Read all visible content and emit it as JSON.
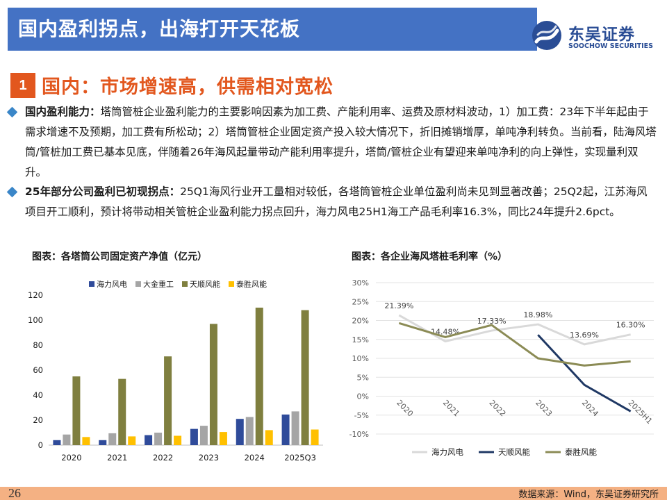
{
  "header": {
    "title": "国内盈利拐点，出海打开天花板"
  },
  "logo": {
    "cn": "东吴证券",
    "en": "SOOCHOW SECURITIES"
  },
  "section": {
    "number": "1",
    "title": "国内：市场增速高，供需相对宽松"
  },
  "bullets": [
    {
      "lead": "国内盈利能力：",
      "text": "塔筒管桩企业盈利能力的主要影响因素为加工费、产能利用率、运费及原材料波动，1）加工费：23年下半年起由于需求增速不及预期，加工费有所松动；2）塔筒管桩企业固定资产投入较大情况下，折旧摊销增厚，单吨净利转负。当前看，陆海风塔筒/管桩加工费已基本见底，伴随着26年海风起量带动产能利用率提升，塔筒/管桩企业有望迎来单吨净利的向上弹性，实现量利双升。"
    },
    {
      "lead": "25年部分公司盈利已初现拐点：",
      "text": "25Q1海风行业开工量相对较低，各塔筒管桩企业单位盈利尚未见到显著改善；25Q2起，江苏海风项目开工顺利，预计将带动相关管桩企业盈利能力拐点回升，海力风电25H1海工产品毛利率16.3%，同比24年提升2.6pct。"
    }
  ],
  "chart_titles": {
    "left": "图表：各塔筒公司固定资产净值（亿元）",
    "right": "图表：各企业海风塔桩毛利率（%）"
  },
  "chart_data": [
    {
      "type": "bar",
      "categories": [
        "2020",
        "2021",
        "2022",
        "2023",
        "2024",
        "2025Q3"
      ],
      "series": [
        {
          "name": "海力风电",
          "color": "#2f4b9a",
          "values": [
            4,
            4,
            8,
            13,
            21,
            24.5
          ]
        },
        {
          "name": "大金重工",
          "color": "#a5a5a5",
          "values": [
            8.5,
            9.5,
            10,
            15.5,
            22.5,
            27
          ]
        },
        {
          "name": "天顺风能",
          "color": "#7f7f3f",
          "values": [
            55,
            53,
            71,
            97,
            110,
            108
          ]
        },
        {
          "name": "泰胜风能",
          "color": "#ffc000",
          "values": [
            6.5,
            7,
            7.5,
            10.5,
            12,
            12.5
          ]
        }
      ],
      "ylim": [
        0,
        120
      ],
      "yticks": [
        0,
        20,
        40,
        60,
        80,
        100,
        120
      ],
      "legend": "top",
      "grid": false
    },
    {
      "type": "line",
      "categories": [
        "2020",
        "2021",
        "2022",
        "2023",
        "2024",
        "2025H1"
      ],
      "series": [
        {
          "name": "海力风电",
          "color": "#d9d9d9",
          "values": [
            21.39,
            14.48,
            17.33,
            18.98,
            13.69,
            16.3
          ],
          "labels": [
            "21.39%",
            "14.48%",
            "17.33%",
            "18.98%",
            "13.69%",
            "16.30%"
          ]
        },
        {
          "name": "天顺风能",
          "color": "#1f3864",
          "values": [
            null,
            null,
            null,
            16.2,
            3,
            -4
          ]
        },
        {
          "name": "泰胜风能",
          "color": "#8b8b55",
          "values": [
            19.3,
            15.6,
            18.8,
            10,
            8.1,
            9.2
          ]
        }
      ],
      "ylim": [
        -10,
        30
      ],
      "yticks": [
        "30%",
        "25%",
        "20%",
        "15%",
        "10%",
        "5%",
        "0%",
        "-5%",
        "-10%"
      ],
      "legend": "bottom",
      "grid": true
    }
  ],
  "footer": {
    "page": "26",
    "source": "数据来源：Wind，东吴证券研究所"
  }
}
